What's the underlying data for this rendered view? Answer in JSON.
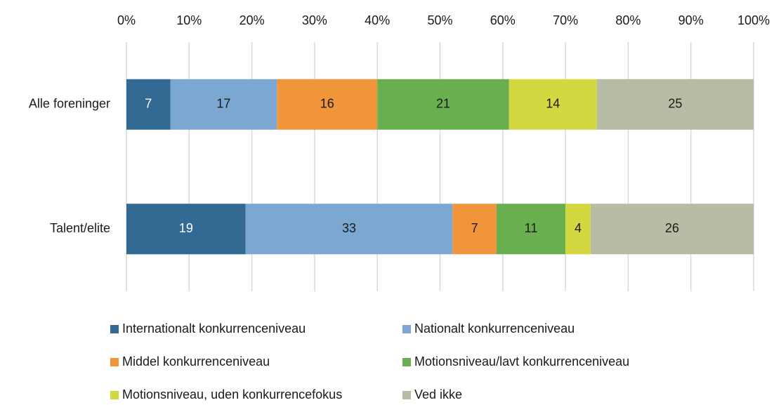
{
  "chart_data": {
    "type": "stacked_bar_horizontal",
    "categories": [
      "Alle foreninger",
      "Talent/elite"
    ],
    "series": [
      {
        "name": "Internationalt konkurrenceniveau",
        "color": "#336a94",
        "values": [
          7,
          19
        ]
      },
      {
        "name": "Nationalt konkurrenceniveau",
        "color": "#7ba7d2",
        "values": [
          17,
          33
        ]
      },
      {
        "name": "Middel konkurrenceniveau",
        "color": "#f0953a",
        "values": [
          16,
          7
        ]
      },
      {
        "name": "Motionsniveau/lavt konkurrenceniveau",
        "color": "#6aaf4f",
        "values": [
          21,
          11
        ]
      },
      {
        "name": "Motionsniveau, uden konkurrencefokus",
        "color": "#d4d840",
        "values": [
          14,
          4
        ]
      },
      {
        "name": "Ved ikke",
        "color": "#b9bca5",
        "values": [
          25,
          26
        ]
      }
    ],
    "xlim": [
      0,
      100
    ],
    "xticks": [
      {
        "value": 0,
        "label": "0%"
      },
      {
        "value": 10,
        "label": "10%"
      },
      {
        "value": 20,
        "label": "20%"
      },
      {
        "value": 30,
        "label": "30%"
      },
      {
        "value": 40,
        "label": "40%"
      },
      {
        "value": 50,
        "label": "50%"
      },
      {
        "value": 60,
        "label": "60%"
      },
      {
        "value": 70,
        "label": "70%"
      },
      {
        "value": 80,
        "label": "80%"
      },
      {
        "value": 90,
        "label": "90%"
      },
      {
        "value": 100,
        "label": "100%"
      }
    ],
    "grid": true,
    "legend": "bottom"
  }
}
